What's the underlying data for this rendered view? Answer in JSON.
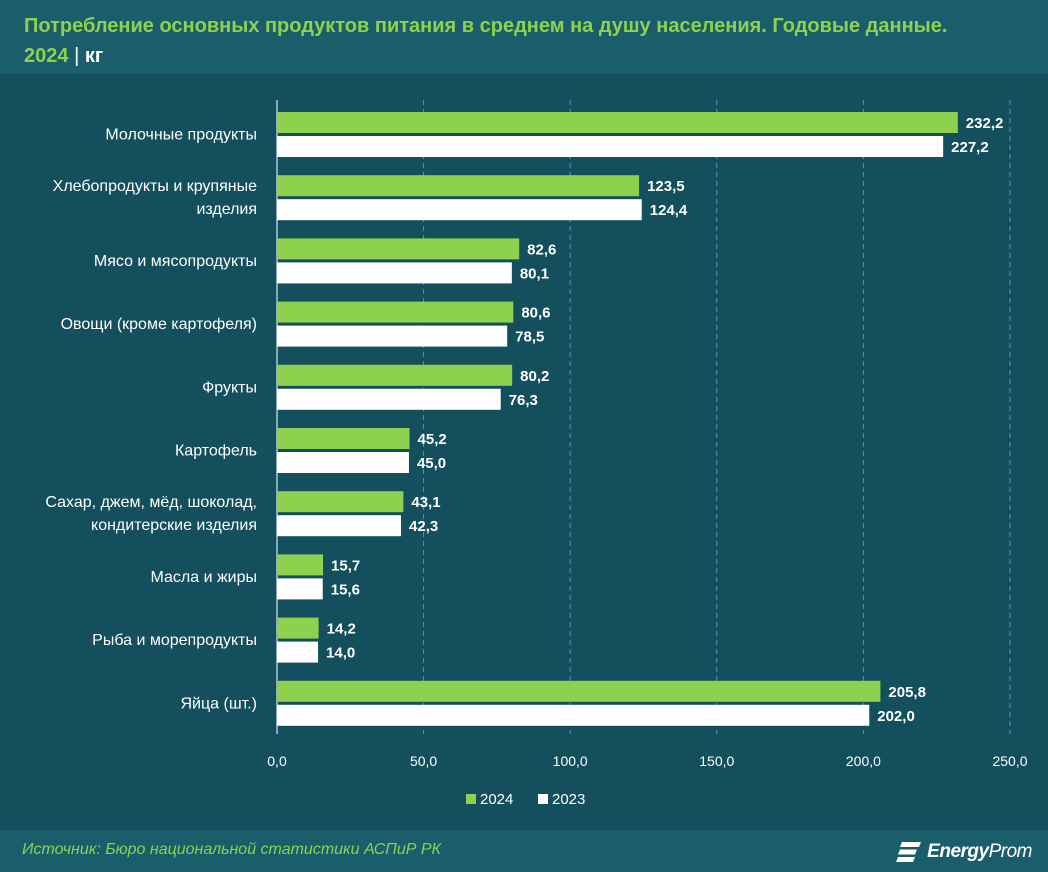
{
  "header": {
    "title": "Потребление основных продуктов питания в среднем на душу населения. Годовые данные.",
    "year": "2024",
    "separator": "|",
    "unit": "кг"
  },
  "footer": {
    "source": "Источник: Бюро национальной статистики АСПиР РК",
    "logo_bold": "Energy",
    "logo_light": "Prom"
  },
  "colors": {
    "background": "#134f5c",
    "series_2024": "#8ed14f",
    "series_2023": "#ffffff",
    "grid": "#4a9fb0"
  },
  "chart_data": {
    "type": "bar",
    "orientation": "horizontal",
    "categories": [
      [
        "Молочные продукты"
      ],
      [
        "Хлебопродукты и крупяные",
        "изделия"
      ],
      [
        "Мясо и мясопродукты"
      ],
      [
        "Овощи (кроме картофеля)"
      ],
      [
        "Фрукты"
      ],
      [
        "Картофель"
      ],
      [
        "Сахар, джем, мёд, шоколад,",
        "кондитерские изделия"
      ],
      [
        "Масла и жиры"
      ],
      [
        "Рыба и морепродукты"
      ],
      [
        "Яйца (шт.)"
      ]
    ],
    "series": [
      {
        "name": "2024",
        "values": [
          232.2,
          123.5,
          82.6,
          80.6,
          80.2,
          45.2,
          43.1,
          15.7,
          14.2,
          205.8
        ],
        "labels": [
          "232,2",
          "123,5",
          "82,6",
          "80,6",
          "80,2",
          "45,2",
          "43,1",
          "15,7",
          "14,2",
          "205,8"
        ]
      },
      {
        "name": "2023",
        "values": [
          227.2,
          124.4,
          80.1,
          78.5,
          76.3,
          45.0,
          42.3,
          15.6,
          14.0,
          202.0
        ],
        "labels": [
          "227,2",
          "124,4",
          "80,1",
          "78,5",
          "76,3",
          "45,0",
          "42,3",
          "15,6",
          "14,0",
          "202,0"
        ]
      }
    ],
    "xlim": [
      0,
      250
    ],
    "xticks": [
      0,
      50,
      100,
      150,
      200,
      250
    ],
    "xtick_labels": [
      "0,0",
      "50,0",
      "100,0",
      "150,0",
      "200,0",
      "250,0"
    ],
    "grid": true,
    "legend": "bottom-center"
  }
}
